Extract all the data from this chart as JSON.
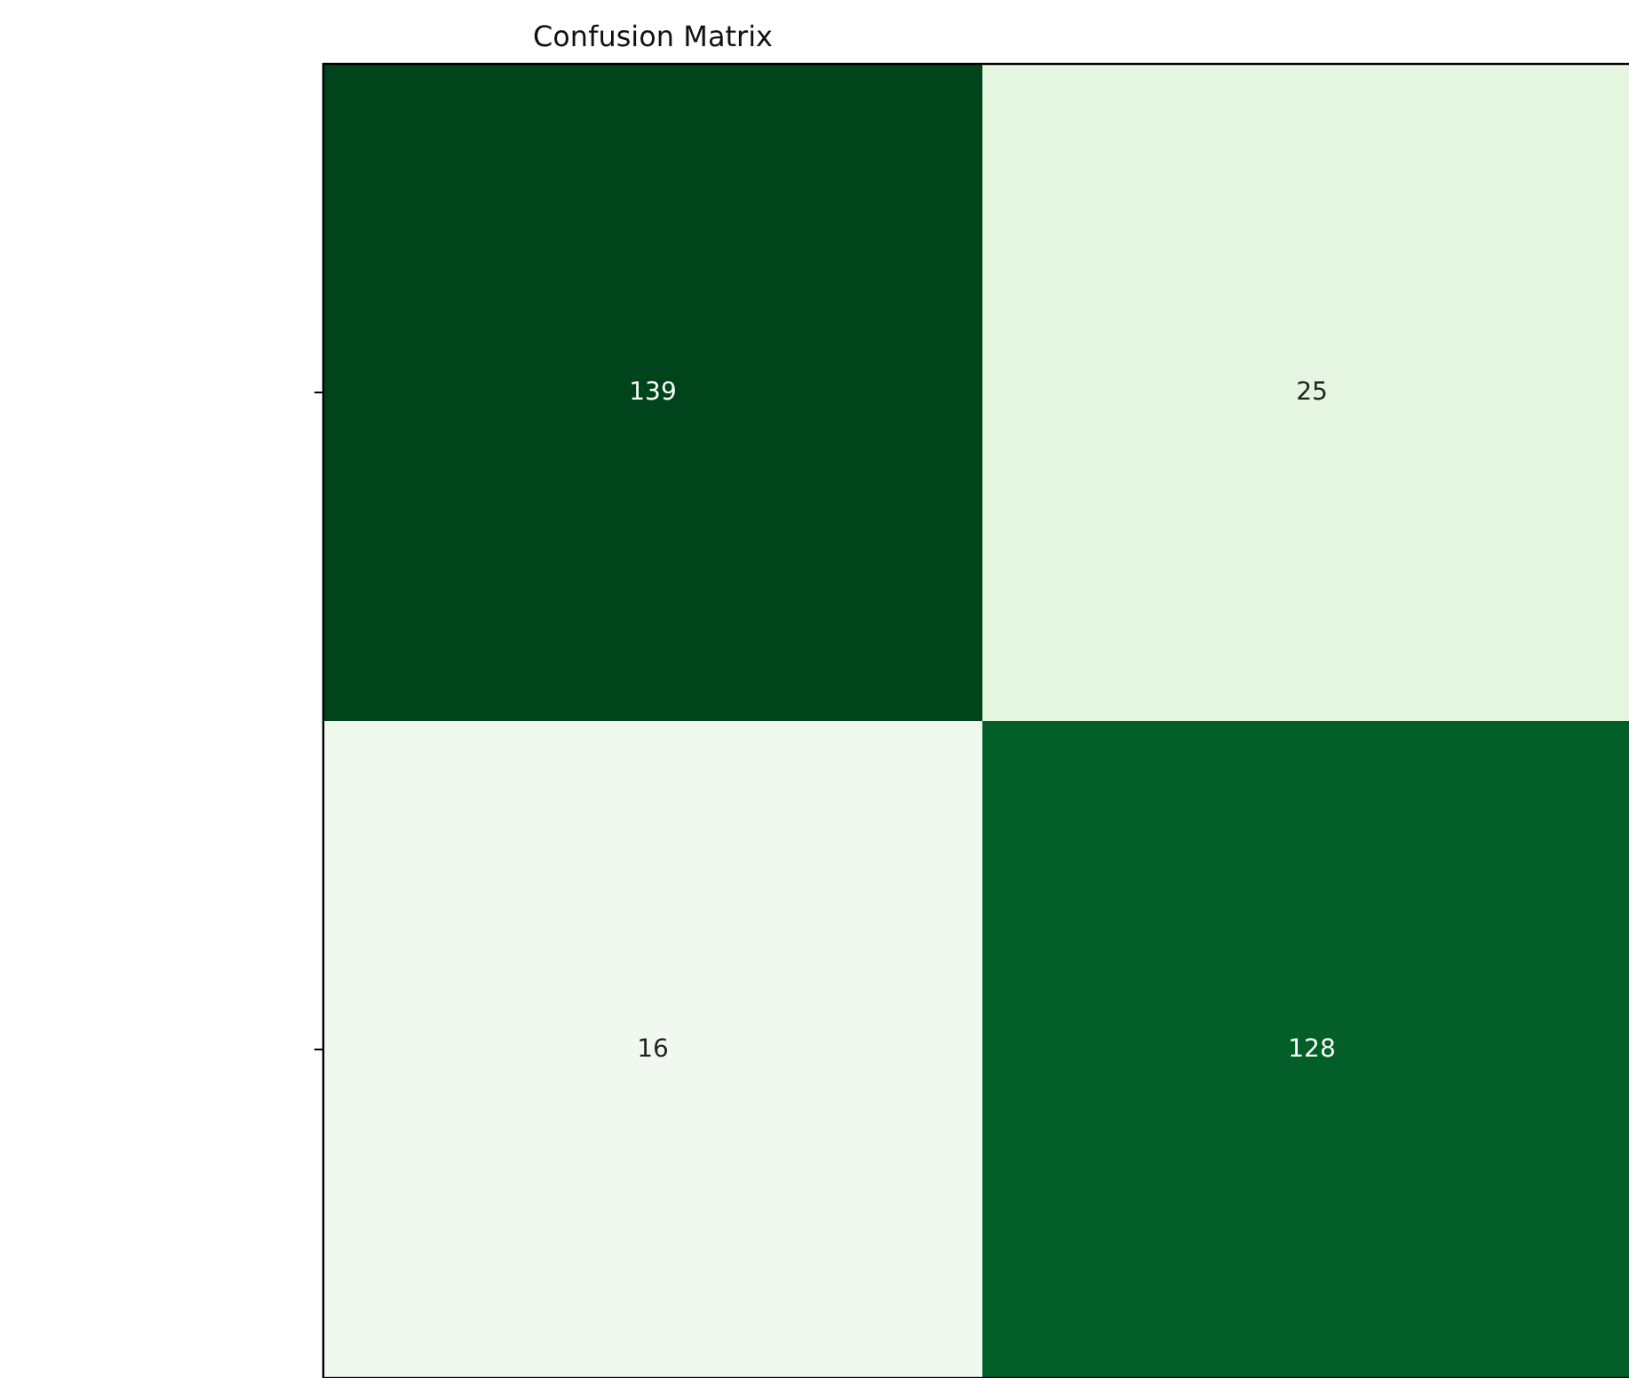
{
  "chart_data": {
    "type": "heatmap",
    "title": "Confusion Matrix",
    "categories": [
      null,
      null
    ],
    "y_categories": [
      null,
      null
    ],
    "cells": [
      [
        139,
        25
      ],
      [
        16,
        128
      ]
    ],
    "data_labels": true
  }
}
